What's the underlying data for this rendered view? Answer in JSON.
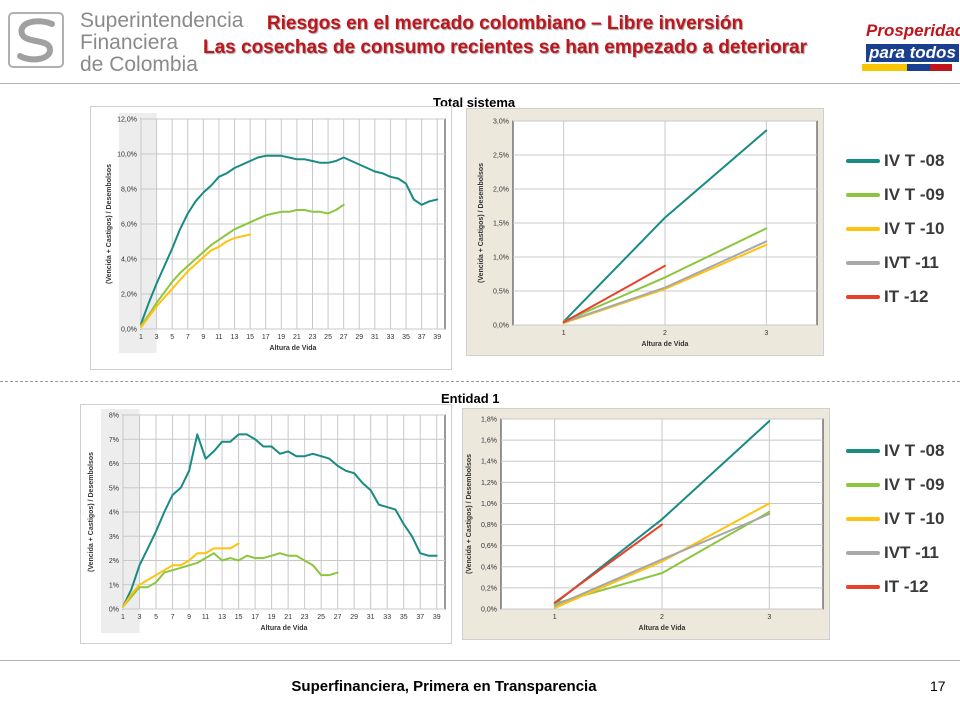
{
  "header": {
    "org": [
      "Superintendencia",
      "Financiera",
      "de Colombia"
    ],
    "title_line1": "Riesgos en el mercado colombiano – Libre inversión",
    "title_line2": "Las cosechas de consumo recientes se han empezado a deteriorar",
    "brand_top": "Prosperidad",
    "brand_bottom": "para todos",
    "colors": {
      "title": "#c0151c",
      "brand_blue": "#1b3f8f",
      "brand_yellow": "#f7c600",
      "brand_red": "#c0151c"
    }
  },
  "sections": [
    {
      "title": "Total sistema"
    },
    {
      "title": "Entidad 1"
    }
  ],
  "legend": [
    {
      "label": "IV T -08",
      "color": "#1a8a84"
    },
    {
      "label": "IV T -09",
      "color": "#8cc63f"
    },
    {
      "label": "IV T -10",
      "color": "#ffc20e"
    },
    {
      "label": "IVT -11",
      "color": "#a8a8a8"
    },
    {
      "label": "IT -12",
      "color": "#e8412b"
    }
  ],
  "chart_data": [
    {
      "type": "line",
      "panel": "Total sistema – largo plazo",
      "xlabel": "Altura de Vida",
      "ylabel": "(Vencida + Castigos) / Desembolsos",
      "xlim": [
        1,
        40
      ],
      "xticks": [
        1,
        3,
        5,
        7,
        9,
        11,
        13,
        15,
        17,
        19,
        21,
        23,
        25,
        27,
        29,
        31,
        33,
        35,
        37,
        39
      ],
      "ylim": [
        0,
        12
      ],
      "ytick_labels": [
        "0,0%",
        "2,0%",
        "4,0%",
        "6,0%",
        "8,0%",
        "10,0%",
        "12,0%"
      ],
      "yticks": [
        0,
        2,
        4,
        6,
        8,
        10,
        12
      ],
      "series": [
        {
          "name": "IV T -08",
          "color": "#1a8a84",
          "x": [
            1,
            2,
            3,
            4,
            5,
            6,
            7,
            8,
            9,
            10,
            11,
            12,
            13,
            14,
            15,
            16,
            17,
            18,
            19,
            20,
            21,
            22,
            23,
            24,
            25,
            26,
            27,
            28,
            29,
            30,
            31,
            32,
            33,
            34,
            35,
            36,
            37,
            38,
            39
          ],
          "y": [
            0.3,
            1.5,
            2.6,
            3.6,
            4.6,
            5.7,
            6.6,
            7.3,
            7.8,
            8.2,
            8.7,
            8.9,
            9.2,
            9.4,
            9.6,
            9.8,
            9.9,
            9.9,
            9.9,
            9.8,
            9.7,
            9.7,
            9.6,
            9.5,
            9.5,
            9.6,
            9.8,
            9.6,
            9.4,
            9.2,
            9.0,
            8.9,
            8.7,
            8.6,
            8.3,
            7.4,
            7.1,
            7.3,
            7.4
          ]
        },
        {
          "name": "IV T -09",
          "color": "#8cc63f",
          "x": [
            1,
            2,
            3,
            4,
            5,
            6,
            7,
            8,
            9,
            10,
            11,
            12,
            13,
            14,
            15,
            16,
            17,
            18,
            19,
            20,
            21,
            22,
            23,
            24,
            25,
            26,
            27
          ],
          "y": [
            0.2,
            0.8,
            1.5,
            2.1,
            2.7,
            3.2,
            3.6,
            4.0,
            4.4,
            4.8,
            5.1,
            5.4,
            5.7,
            5.9,
            6.1,
            6.3,
            6.5,
            6.6,
            6.7,
            6.7,
            6.8,
            6.8,
            6.7,
            6.7,
            6.6,
            6.8,
            7.1
          ]
        },
        {
          "name": "IV T -10",
          "color": "#ffc20e",
          "x": [
            1,
            2,
            3,
            4,
            5,
            6,
            7,
            8,
            9,
            10,
            11,
            12,
            13,
            14,
            15
          ],
          "y": [
            0.1,
            0.7,
            1.3,
            1.8,
            2.3,
            2.8,
            3.3,
            3.7,
            4.1,
            4.5,
            4.7,
            5.0,
            5.2,
            5.3,
            5.4
          ]
        }
      ]
    },
    {
      "type": "line",
      "panel": "Total sistema – zoom",
      "xlabel": "Altura de Vida",
      "ylabel": "(Vencida + Castigos) / Desembolsos",
      "xlim": [
        0.5,
        3.5
      ],
      "xticks": [
        1,
        2,
        3
      ],
      "ylim": [
        0,
        3
      ],
      "ytick_labels": [
        "0,0%",
        "0,5%",
        "1,0%",
        "1,5%",
        "2,0%",
        "2,5%",
        "3,0%"
      ],
      "yticks": [
        0,
        0.5,
        1.0,
        1.5,
        2.0,
        2.5,
        3.0
      ],
      "series": [
        {
          "name": "IV T -08",
          "color": "#1a8a84",
          "x": [
            1,
            2,
            3
          ],
          "y": [
            0.05,
            1.58,
            2.86
          ]
        },
        {
          "name": "IV T -09",
          "color": "#8cc63f",
          "x": [
            1,
            2,
            3
          ],
          "y": [
            0.05,
            0.7,
            1.42
          ]
        },
        {
          "name": "IV T -10",
          "color": "#ffc20e",
          "x": [
            1,
            2,
            3
          ],
          "y": [
            0.03,
            0.53,
            1.18
          ]
        },
        {
          "name": "IVT -11",
          "color": "#a8a8a8",
          "x": [
            1,
            2,
            3
          ],
          "y": [
            0.04,
            0.55,
            1.23
          ]
        },
        {
          "name": "IT -12",
          "color": "#e8412b",
          "x": [
            1,
            2
          ],
          "y": [
            0.04,
            0.87
          ]
        }
      ]
    },
    {
      "type": "line",
      "panel": "Entidad 1 – largo plazo",
      "xlabel": "Altura de Vida",
      "ylabel": "(Vencida + Castigos) / Desembolsos",
      "xlim": [
        1,
        40
      ],
      "xticks": [
        1,
        3,
        5,
        7,
        9,
        11,
        13,
        15,
        17,
        19,
        21,
        23,
        25,
        27,
        29,
        31,
        33,
        35,
        37,
        39
      ],
      "ylim": [
        0,
        8
      ],
      "ytick_labels": [
        "0%",
        "1%",
        "2%",
        "3%",
        "4%",
        "5%",
        "6%",
        "7%",
        "8%"
      ],
      "yticks": [
        0,
        1,
        2,
        3,
        4,
        5,
        6,
        7,
        8
      ],
      "series": [
        {
          "name": "IV T -08",
          "color": "#1a8a84",
          "x": [
            1,
            2,
            3,
            4,
            5,
            6,
            7,
            8,
            9,
            10,
            11,
            12,
            13,
            14,
            15,
            16,
            17,
            18,
            19,
            20,
            21,
            22,
            23,
            24,
            25,
            26,
            27,
            28,
            29,
            30,
            31,
            32,
            33,
            34,
            35,
            36,
            37,
            38,
            39
          ],
          "y": [
            0.1,
            0.8,
            1.8,
            2.5,
            3.2,
            4.0,
            4.7,
            5.0,
            5.7,
            7.2,
            6.2,
            6.5,
            6.9,
            6.9,
            7.2,
            7.2,
            7.0,
            6.7,
            6.7,
            6.4,
            6.5,
            6.3,
            6.3,
            6.4,
            6.3,
            6.2,
            5.9,
            5.7,
            5.6,
            5.2,
            4.9,
            4.3,
            4.2,
            4.1,
            3.5,
            3.0,
            2.3,
            2.2,
            2.2
          ]
        },
        {
          "name": "IV T -09",
          "color": "#8cc63f",
          "x": [
            1,
            2,
            3,
            4,
            5,
            6,
            7,
            8,
            9,
            10,
            11,
            12,
            13,
            14,
            15,
            16,
            17,
            18,
            19,
            20,
            21,
            22,
            23,
            24,
            25,
            26,
            27
          ],
          "y": [
            0.1,
            0.5,
            0.9,
            0.9,
            1.1,
            1.5,
            1.6,
            1.7,
            1.8,
            1.9,
            2.1,
            2.3,
            2.0,
            2.1,
            2.0,
            2.2,
            2.1,
            2.1,
            2.2,
            2.3,
            2.2,
            2.2,
            2.0,
            1.8,
            1.4,
            1.4,
            1.5
          ]
        },
        {
          "name": "IV T -10",
          "color": "#ffc20e",
          "x": [
            1,
            2,
            3,
            4,
            5,
            6,
            7,
            8,
            9,
            10,
            11,
            12,
            13,
            14,
            15
          ],
          "y": [
            0.1,
            0.6,
            1.0,
            1.2,
            1.4,
            1.6,
            1.8,
            1.8,
            2.0,
            2.3,
            2.3,
            2.5,
            2.5,
            2.5,
            2.7
          ]
        }
      ]
    },
    {
      "type": "line",
      "panel": "Entidad 1 – zoom",
      "xlabel": "Altura de Vida",
      "ylabel": "(Vencida + Castigos) / Desembolsos",
      "xlim": [
        0.5,
        3.5
      ],
      "xticks": [
        1,
        2,
        3
      ],
      "ylim": [
        0,
        1.8
      ],
      "ytick_labels": [
        "0,0%",
        "0,2%",
        "0,4%",
        "0,6%",
        "0,8%",
        "1,0%",
        "1,2%",
        "1,4%",
        "1,6%",
        "1,8%"
      ],
      "yticks": [
        0,
        0.2,
        0.4,
        0.6,
        0.8,
        1.0,
        1.2,
        1.4,
        1.6,
        1.8
      ],
      "series": [
        {
          "name": "IV T -08",
          "color": "#1a8a84",
          "x": [
            1,
            2,
            3
          ],
          "y": [
            0.05,
            0.85,
            1.78
          ]
        },
        {
          "name": "IV T -09",
          "color": "#8cc63f",
          "x": [
            1,
            2,
            3
          ],
          "y": [
            0.05,
            0.34,
            0.92
          ]
        },
        {
          "name": "IV T -10",
          "color": "#ffc20e",
          "x": [
            1,
            2,
            3
          ],
          "y": [
            0.01,
            0.45,
            1.0
          ]
        },
        {
          "name": "IVT -11",
          "color": "#a8a8a8",
          "x": [
            1,
            2,
            3
          ],
          "y": [
            0.03,
            0.47,
            0.9
          ]
        },
        {
          "name": "IT -12",
          "color": "#e8412b",
          "x": [
            1,
            2
          ],
          "y": [
            0.06,
            0.8
          ]
        }
      ]
    }
  ],
  "footer": {
    "text": "Superfinanciera, Primera en Transparencia",
    "page": "17"
  }
}
